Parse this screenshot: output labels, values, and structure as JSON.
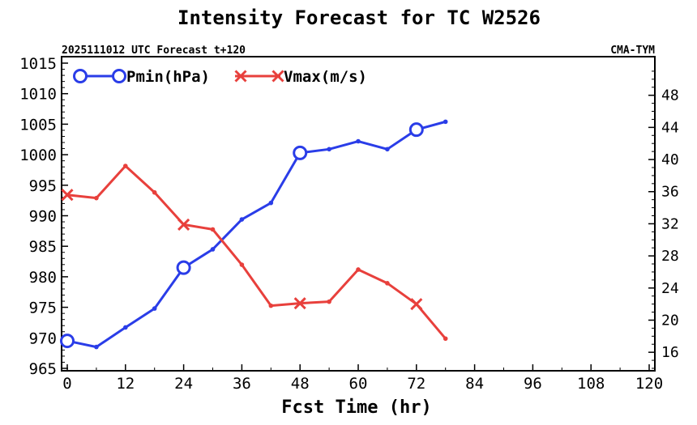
{
  "chart_data": {
    "type": "line",
    "title": "Intensity Forecast for TC W2526",
    "subtitle_left": "2025111012 UTC Forecast t+120",
    "subtitle_right": "CMA-TYM",
    "xlabel": "Fcst Time (hr)",
    "xlim": [
      0,
      120
    ],
    "xticks": [
      0,
      12,
      24,
      36,
      48,
      60,
      72,
      84,
      96,
      108,
      120
    ],
    "ylim_left": [
      965,
      1015
    ],
    "yticks_left": [
      965,
      970,
      975,
      980,
      985,
      990,
      995,
      1000,
      1005,
      1010,
      1015
    ],
    "ylim_right": [
      14,
      52
    ],
    "yticks_right": [
      16,
      20,
      24,
      28,
      32,
      36,
      40,
      44,
      48
    ],
    "legend_position": "top-left",
    "series": [
      {
        "name": "Pmin(hPa)",
        "axis": "left",
        "color": "#2a3de8",
        "marker": "circle",
        "marker_every_hours": 24,
        "x": [
          0,
          6,
          12,
          18,
          24,
          30,
          36,
          42,
          48,
          54,
          60,
          66,
          72,
          78
        ],
        "values": [
          969.5,
          968.5,
          971.7,
          974.8,
          981.5,
          984.5,
          989.4,
          992.1,
          1000.3,
          1000.9,
          1002.2,
          1000.9,
          1004.1,
          1005.4
        ]
      },
      {
        "name": "Vmax(m/s)",
        "axis": "right",
        "color": "#e8403c",
        "marker": "x",
        "marker_every_hours": 24,
        "x": [
          0,
          6,
          12,
          18,
          24,
          30,
          36,
          42,
          48,
          54,
          60,
          66,
          72,
          78
        ],
        "values": [
          35.6,
          35.2,
          39.2,
          35.9,
          31.9,
          31.3,
          26.9,
          21.8,
          22.1,
          22.3,
          26.3,
          24.6,
          22.0,
          17.7
        ]
      }
    ]
  }
}
